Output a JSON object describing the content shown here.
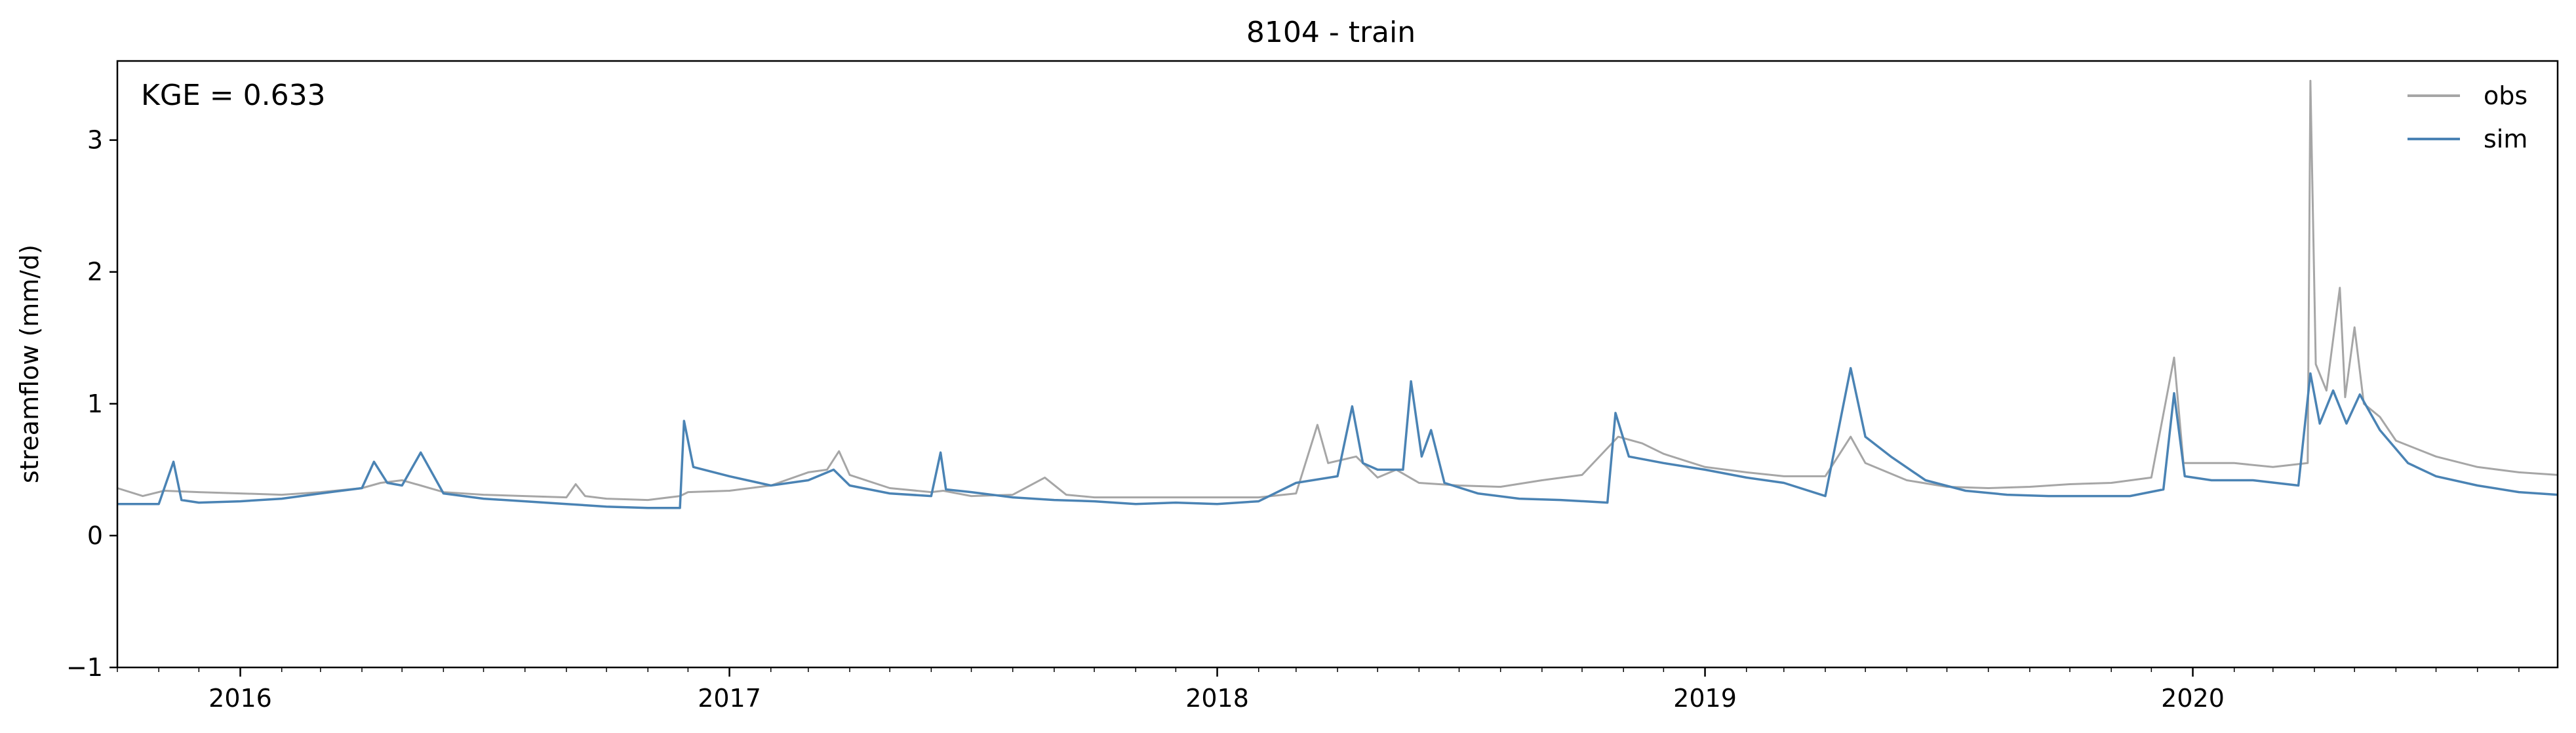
{
  "chart_data": {
    "type": "line",
    "title": "8104 - train",
    "xlabel": "",
    "ylabel": "streamflow (mm/d)",
    "annotation": "KGE = 0.633",
    "xlim": [
      "2015-10-01",
      "2020-09-30"
    ],
    "ylim": [
      -1,
      3.6
    ],
    "yticks": [
      -1,
      0,
      1,
      2,
      3
    ],
    "xticks": [
      "2016",
      "2017",
      "2018",
      "2019",
      "2020"
    ],
    "grid": false,
    "legend_position": "upper right",
    "series": [
      {
        "name": "obs",
        "color": "#a6a6a6",
        "points": [
          [
            "2015-10-01",
            0.36
          ],
          [
            "2015-10-20",
            0.3
          ],
          [
            "2015-11-05",
            0.34
          ],
          [
            "2015-12-01",
            0.33
          ],
          [
            "2016-01-01",
            0.32
          ],
          [
            "2016-02-01",
            0.31
          ],
          [
            "2016-03-01",
            0.33
          ],
          [
            "2016-04-01",
            0.36
          ],
          [
            "2016-04-15",
            0.4
          ],
          [
            "2016-05-01",
            0.42
          ],
          [
            "2016-05-15",
            0.38
          ],
          [
            "2016-06-01",
            0.33
          ],
          [
            "2016-07-01",
            0.31
          ],
          [
            "2016-08-01",
            0.3
          ],
          [
            "2016-09-01",
            0.29
          ],
          [
            "2016-09-08",
            0.39
          ],
          [
            "2016-09-15",
            0.3
          ],
          [
            "2016-10-01",
            0.28
          ],
          [
            "2016-11-01",
            0.27
          ],
          [
            "2016-11-25",
            0.3
          ],
          [
            "2016-12-01",
            0.33
          ],
          [
            "2017-01-01",
            0.34
          ],
          [
            "2017-02-01",
            0.38
          ],
          [
            "2017-03-01",
            0.48
          ],
          [
            "2017-03-15",
            0.5
          ],
          [
            "2017-03-24",
            0.64
          ],
          [
            "2017-04-01",
            0.46
          ],
          [
            "2017-05-01",
            0.36
          ],
          [
            "2017-06-01",
            0.33
          ],
          [
            "2017-06-10",
            0.34
          ],
          [
            "2017-07-01",
            0.3
          ],
          [
            "2017-08-01",
            0.31
          ],
          [
            "2017-08-25",
            0.44
          ],
          [
            "2017-09-10",
            0.31
          ],
          [
            "2017-10-01",
            0.29
          ],
          [
            "2017-11-01",
            0.29
          ],
          [
            "2017-12-01",
            0.29
          ],
          [
            "2018-01-01",
            0.29
          ],
          [
            "2018-02-01",
            0.29
          ],
          [
            "2018-03-01",
            0.32
          ],
          [
            "2018-03-17",
            0.84
          ],
          [
            "2018-03-25",
            0.55
          ],
          [
            "2018-04-15",
            0.6
          ],
          [
            "2018-05-01",
            0.44
          ],
          [
            "2018-05-15",
            0.5
          ],
          [
            "2018-06-01",
            0.4
          ],
          [
            "2018-07-01",
            0.38
          ],
          [
            "2018-08-01",
            0.37
          ],
          [
            "2018-09-01",
            0.42
          ],
          [
            "2018-10-01",
            0.46
          ],
          [
            "2018-10-28",
            0.75
          ],
          [
            "2018-11-15",
            0.7
          ],
          [
            "2018-12-01",
            0.62
          ],
          [
            "2019-01-01",
            0.52
          ],
          [
            "2019-02-01",
            0.48
          ],
          [
            "2019-03-01",
            0.45
          ],
          [
            "2019-04-01",
            0.45
          ],
          [
            "2019-04-20",
            0.75
          ],
          [
            "2019-05-01",
            0.55
          ],
          [
            "2019-06-01",
            0.42
          ],
          [
            "2019-07-01",
            0.37
          ],
          [
            "2019-08-01",
            0.36
          ],
          [
            "2019-09-01",
            0.37
          ],
          [
            "2019-10-01",
            0.39
          ],
          [
            "2019-11-01",
            0.4
          ],
          [
            "2019-12-01",
            0.44
          ],
          [
            "2019-12-18",
            1.35
          ],
          [
            "2019-12-25",
            0.55
          ],
          [
            "2020-01-15",
            0.55
          ],
          [
            "2020-02-01",
            0.55
          ],
          [
            "2020-03-01",
            0.52
          ],
          [
            "2020-03-27",
            0.55
          ],
          [
            "2020-03-29",
            3.45
          ],
          [
            "2020-04-02",
            1.3
          ],
          [
            "2020-04-10",
            1.1
          ],
          [
            "2020-04-20",
            1.88
          ],
          [
            "2020-04-24",
            1.05
          ],
          [
            "2020-05-01",
            1.58
          ],
          [
            "2020-05-08",
            1.0
          ],
          [
            "2020-05-20",
            0.9
          ],
          [
            "2020-06-01",
            0.72
          ],
          [
            "2020-07-01",
            0.6
          ],
          [
            "2020-08-01",
            0.52
          ],
          [
            "2020-09-01",
            0.48
          ],
          [
            "2020-09-30",
            0.46
          ]
        ]
      },
      {
        "name": "sim",
        "color": "#4a83b4",
        "points": [
          [
            "2015-10-01",
            0.24
          ],
          [
            "2015-11-01",
            0.24
          ],
          [
            "2015-11-12",
            0.56
          ],
          [
            "2015-11-18",
            0.27
          ],
          [
            "2015-12-01",
            0.25
          ],
          [
            "2016-01-01",
            0.26
          ],
          [
            "2016-02-01",
            0.28
          ],
          [
            "2016-03-01",
            0.32
          ],
          [
            "2016-04-01",
            0.36
          ],
          [
            "2016-04-10",
            0.56
          ],
          [
            "2016-04-20",
            0.4
          ],
          [
            "2016-05-01",
            0.38
          ],
          [
            "2016-05-15",
            0.63
          ],
          [
            "2016-06-01",
            0.32
          ],
          [
            "2016-07-01",
            0.28
          ],
          [
            "2016-08-01",
            0.26
          ],
          [
            "2016-09-01",
            0.24
          ],
          [
            "2016-10-01",
            0.22
          ],
          [
            "2016-11-01",
            0.21
          ],
          [
            "2016-11-25",
            0.21
          ],
          [
            "2016-11-28",
            0.87
          ],
          [
            "2016-12-05",
            0.52
          ],
          [
            "2017-01-01",
            0.45
          ],
          [
            "2017-02-01",
            0.38
          ],
          [
            "2017-03-01",
            0.42
          ],
          [
            "2017-03-20",
            0.5
          ],
          [
            "2017-04-01",
            0.38
          ],
          [
            "2017-05-01",
            0.32
          ],
          [
            "2017-06-01",
            0.3
          ],
          [
            "2017-06-08",
            0.63
          ],
          [
            "2017-06-12",
            0.35
          ],
          [
            "2017-07-01",
            0.33
          ],
          [
            "2017-08-01",
            0.29
          ],
          [
            "2017-09-01",
            0.27
          ],
          [
            "2017-10-01",
            0.26
          ],
          [
            "2017-11-01",
            0.24
          ],
          [
            "2017-12-01",
            0.25
          ],
          [
            "2018-01-01",
            0.24
          ],
          [
            "2018-02-01",
            0.26
          ],
          [
            "2018-03-01",
            0.4
          ],
          [
            "2018-04-01",
            0.45
          ],
          [
            "2018-04-12",
            0.98
          ],
          [
            "2018-04-20",
            0.55
          ],
          [
            "2018-05-01",
            0.5
          ],
          [
            "2018-05-20",
            0.5
          ],
          [
            "2018-05-26",
            1.17
          ],
          [
            "2018-06-03",
            0.6
          ],
          [
            "2018-06-10",
            0.8
          ],
          [
            "2018-06-20",
            0.4
          ],
          [
            "2018-07-15",
            0.32
          ],
          [
            "2018-08-15",
            0.28
          ],
          [
            "2018-09-15",
            0.27
          ],
          [
            "2018-10-20",
            0.25
          ],
          [
            "2018-10-26",
            0.93
          ],
          [
            "2018-11-05",
            0.6
          ],
          [
            "2018-12-01",
            0.55
          ],
          [
            "2019-01-01",
            0.5
          ],
          [
            "2019-02-01",
            0.44
          ],
          [
            "2019-03-01",
            0.4
          ],
          [
            "2019-04-01",
            0.3
          ],
          [
            "2019-04-20",
            1.27
          ],
          [
            "2019-05-01",
            0.75
          ],
          [
            "2019-05-20",
            0.6
          ],
          [
            "2019-06-15",
            0.42
          ],
          [
            "2019-07-15",
            0.34
          ],
          [
            "2019-08-15",
            0.31
          ],
          [
            "2019-09-15",
            0.3
          ],
          [
            "2019-10-15",
            0.3
          ],
          [
            "2019-11-15",
            0.3
          ],
          [
            "2019-12-10",
            0.35
          ],
          [
            "2019-12-18",
            1.08
          ],
          [
            "2019-12-26",
            0.45
          ],
          [
            "2020-01-15",
            0.42
          ],
          [
            "2020-02-15",
            0.42
          ],
          [
            "2020-03-20",
            0.38
          ],
          [
            "2020-03-29",
            1.23
          ],
          [
            "2020-04-05",
            0.85
          ],
          [
            "2020-04-15",
            1.1
          ],
          [
            "2020-04-25",
            0.85
          ],
          [
            "2020-05-05",
            1.07
          ],
          [
            "2020-05-20",
            0.8
          ],
          [
            "2020-06-10",
            0.55
          ],
          [
            "2020-07-01",
            0.45
          ],
          [
            "2020-08-01",
            0.38
          ],
          [
            "2020-09-01",
            0.33
          ],
          [
            "2020-09-30",
            0.31
          ]
        ]
      }
    ]
  }
}
